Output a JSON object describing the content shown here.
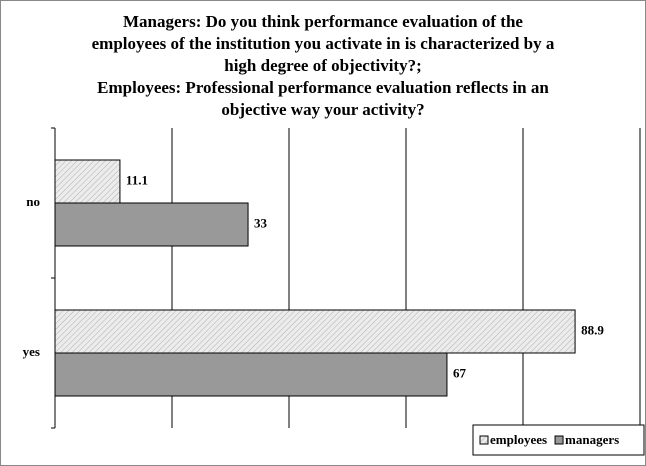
{
  "chart_data": {
    "type": "barh",
    "title": [
      "Managers: Do you think performance evaluation of the",
      "employees of the institution you activate in is characterized by a",
      "high degree of objectivity?;",
      "Employees: Professional performance evaluation reflects in an",
      "objective way your activity?"
    ],
    "categories": [
      "no",
      "yes"
    ],
    "series": [
      {
        "name": "employees",
        "color": "#e0e0e0",
        "values": [
          11.1,
          88.9
        ]
      },
      {
        "name": "managers",
        "color": "#999999",
        "values": [
          33,
          67
        ]
      }
    ],
    "xlim": [
      0,
      100
    ],
    "xticks": [
      0,
      20,
      40,
      60,
      80,
      100
    ],
    "grid": true,
    "legend": "bottom-right"
  }
}
